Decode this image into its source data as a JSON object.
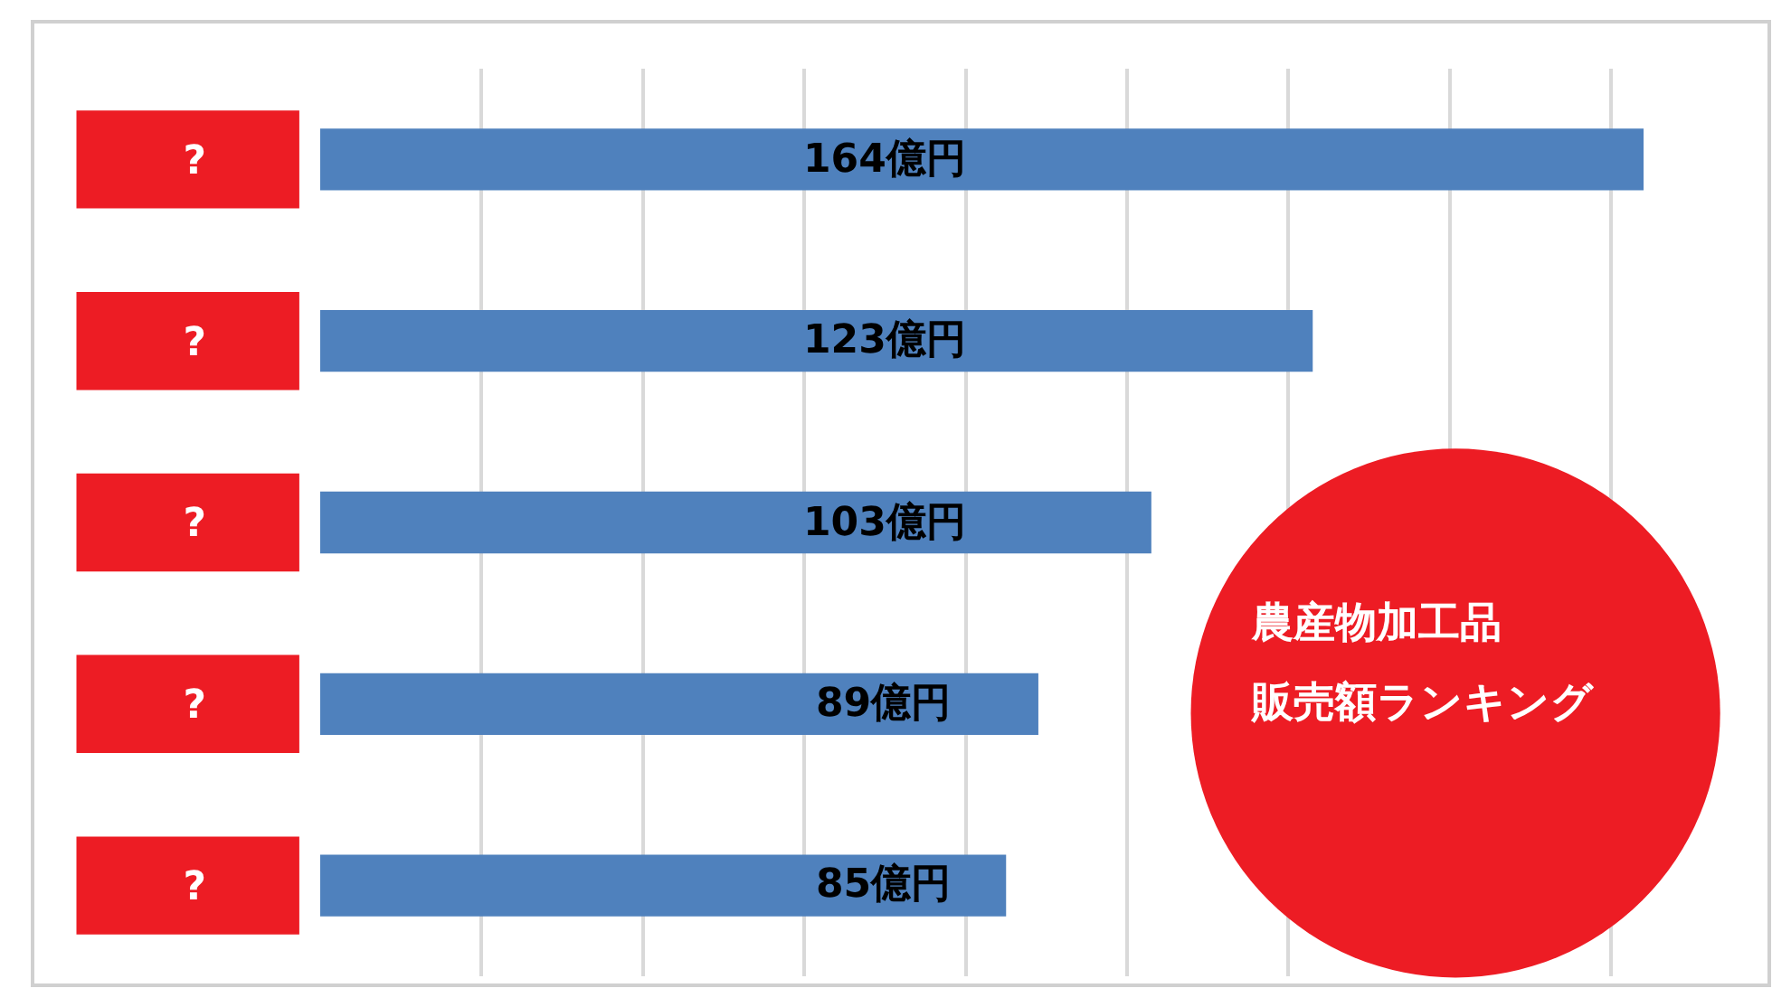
{
  "chart_data": {
    "type": "bar",
    "orientation": "horizontal",
    "title": "農産物加工品",
    "subtitle": "販売額ランキング",
    "categories": [
      "?",
      "?",
      "?",
      "?",
      "?"
    ],
    "values": [
      164,
      123,
      103,
      89,
      85
    ],
    "value_labels": [
      "164億円",
      "123億円",
      "103億円",
      "89億円",
      "85億円"
    ],
    "color": "#4f81bd",
    "grid": "x",
    "tick_labels": "y"
  }
}
